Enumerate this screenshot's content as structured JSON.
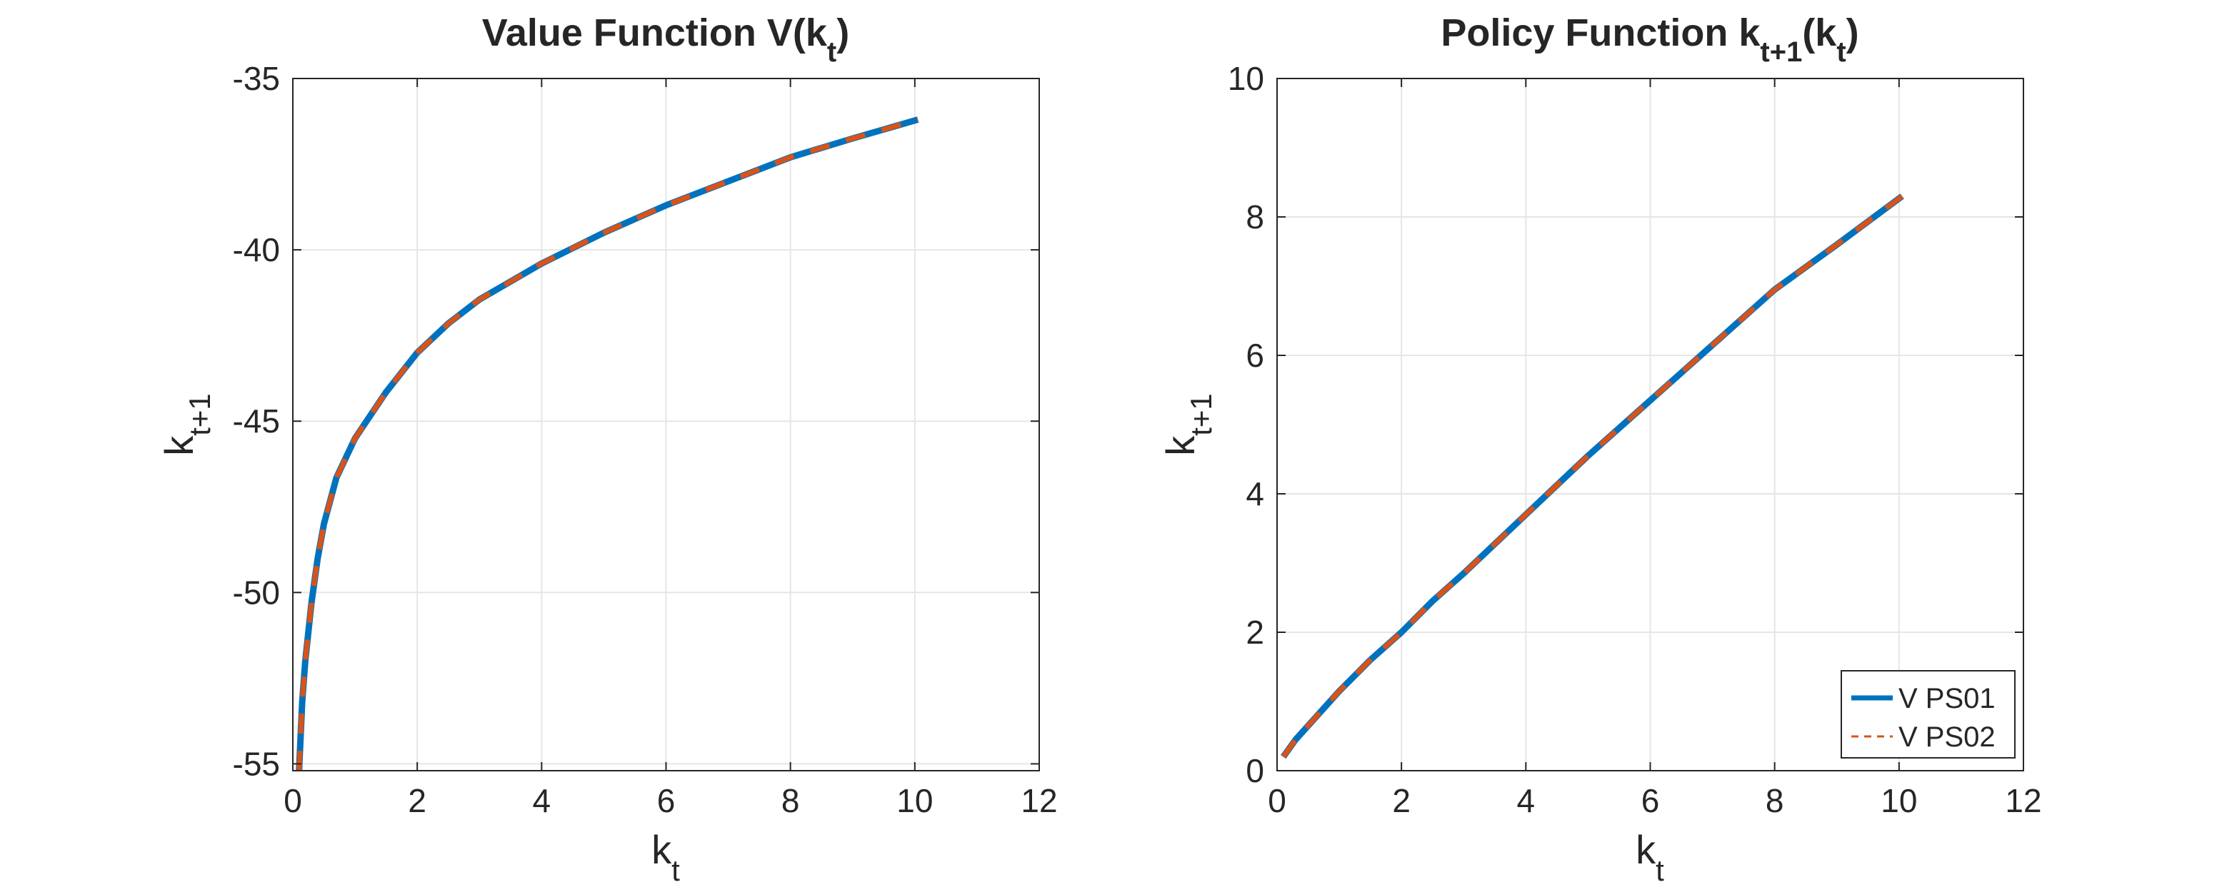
{
  "chart_data": [
    {
      "type": "line",
      "title": "Value Function V(k",
      "title_sub": "t",
      "title_end": ")",
      "xlabel": "k",
      "xlabel_sub": "t",
      "ylabel": "k",
      "ylabel_sub": "t+1",
      "xlim": [
        0,
        12
      ],
      "ylim": [
        -55.2,
        -35
      ],
      "xticks": [
        "0",
        "2",
        "4",
        "6",
        "8",
        "10",
        "12"
      ],
      "xtick_values": [
        0,
        2,
        4,
        6,
        8,
        10,
        12
      ],
      "yticks": [
        "-55",
        "-50",
        "-45",
        "-40",
        "-35"
      ],
      "ytick_values": [
        -55,
        -50,
        -45,
        -40,
        -35
      ],
      "grid": true,
      "x": [
        0.1,
        0.15,
        0.2,
        0.3,
        0.4,
        0.5,
        0.7,
        1.0,
        1.5,
        2.0,
        2.5,
        3.0,
        4.0,
        5.0,
        6.0,
        7.0,
        8.0,
        9.0,
        10.05
      ],
      "series": [
        {
          "values": [
            -55.2,
            -53.2,
            -52.0,
            -50.3,
            -49.0,
            -48.0,
            -46.65,
            -45.5,
            -44.15,
            -43.0,
            -42.15,
            -41.45,
            -40.4,
            -39.5,
            -38.7,
            -38.0,
            -37.3,
            -36.75,
            -36.2
          ],
          "color": "#0072BD",
          "style": "solid"
        },
        {
          "values": [
            -55.2,
            -53.2,
            -52.0,
            -50.3,
            -49.0,
            -48.0,
            -46.65,
            -45.5,
            -44.15,
            -43.0,
            -42.15,
            -41.45,
            -40.4,
            -39.5,
            -38.7,
            -38.0,
            -37.3,
            -36.75,
            -36.2
          ],
          "color": "#D95319",
          "style": "dashed"
        }
      ]
    },
    {
      "type": "line",
      "title": "Policy Function k",
      "title_sub": "t+1",
      "title_mid": "(k",
      "title_sub2": "t",
      "title_end": ")",
      "xlabel": "k",
      "xlabel_sub": "t",
      "ylabel": "k",
      "ylabel_sub": "t+1",
      "xlim": [
        0,
        12
      ],
      "ylim": [
        0,
        10
      ],
      "xticks": [
        "0",
        "2",
        "4",
        "6",
        "8",
        "10",
        "12"
      ],
      "xtick_values": [
        0,
        2,
        4,
        6,
        8,
        10,
        12
      ],
      "yticks": [
        "0",
        "2",
        "4",
        "6",
        "8",
        "10"
      ],
      "ytick_values": [
        0,
        2,
        4,
        6,
        8,
        10
      ],
      "grid": true,
      "legend_location": "bottom-right",
      "x": [
        0.1,
        0.3,
        0.5,
        1.0,
        1.5,
        2.0,
        2.5,
        3.0,
        4.0,
        5.0,
        6.0,
        7.0,
        8.0,
        9.0,
        10.05
      ],
      "series": [
        {
          "name": "V PS01",
          "values": [
            0.2,
            0.45,
            0.65,
            1.15,
            1.6,
            2.0,
            2.45,
            2.85,
            3.7,
            4.55,
            5.35,
            6.15,
            6.95,
            7.6,
            8.3
          ],
          "color": "#0072BD",
          "style": "solid"
        },
        {
          "name": "V PS02",
          "values": [
            0.2,
            0.45,
            0.65,
            1.15,
            1.6,
            2.0,
            2.45,
            2.85,
            3.7,
            4.55,
            5.35,
            6.15,
            6.95,
            7.6,
            8.3
          ],
          "color": "#D95319",
          "style": "dashed"
        }
      ]
    }
  ]
}
